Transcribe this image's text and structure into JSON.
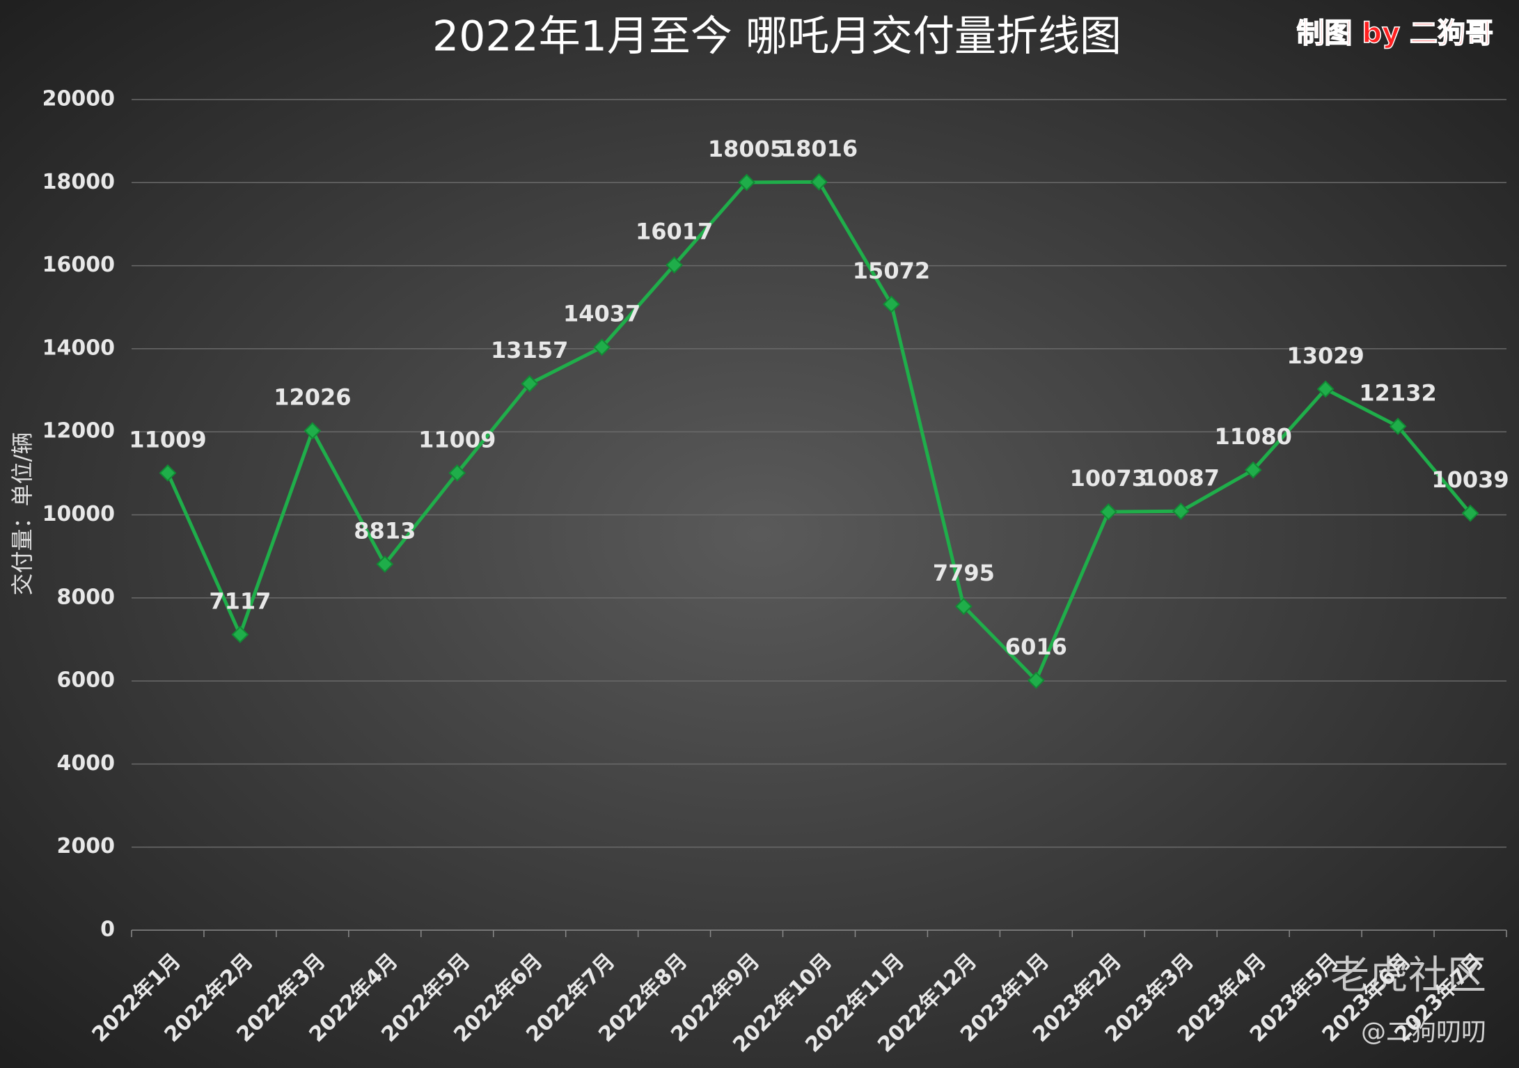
{
  "chart_data": {
    "type": "line",
    "title": "2022年1月至今 哪吒月交付量折线图",
    "credit": "制图 by 二狗哥",
    "y_label": "交付量：单位/辆",
    "watermark": [
      "老虎社区",
      "@二狗叨叨"
    ],
    "categories": [
      "2022年1月",
      "2022年2月",
      "2022年3月",
      "2022年4月",
      "2022年5月",
      "2022年6月",
      "2022年7月",
      "2022年8月",
      "2022年9月",
      "2022年10月",
      "2022年11月",
      "2022年12月",
      "2023年1月",
      "2023年2月",
      "2023年3月",
      "2023年4月",
      "2023年5月",
      "2023年6月",
      "2023年7月"
    ],
    "series": [
      {
        "name": "交付量",
        "color": "#1fae4a",
        "values": [
          11009,
          7117,
          12026,
          8813,
          11009,
          13157,
          14037,
          16017,
          18005,
          18016,
          15072,
          7795,
          6016,
          10073,
          10087,
          11080,
          13029,
          12132,
          10039
        ]
      }
    ],
    "ylim": [
      0,
      20000
    ],
    "yticks": [
      0,
      2000,
      4000,
      6000,
      8000,
      10000,
      12000,
      14000,
      16000,
      18000,
      20000
    ],
    "grid": true
  }
}
